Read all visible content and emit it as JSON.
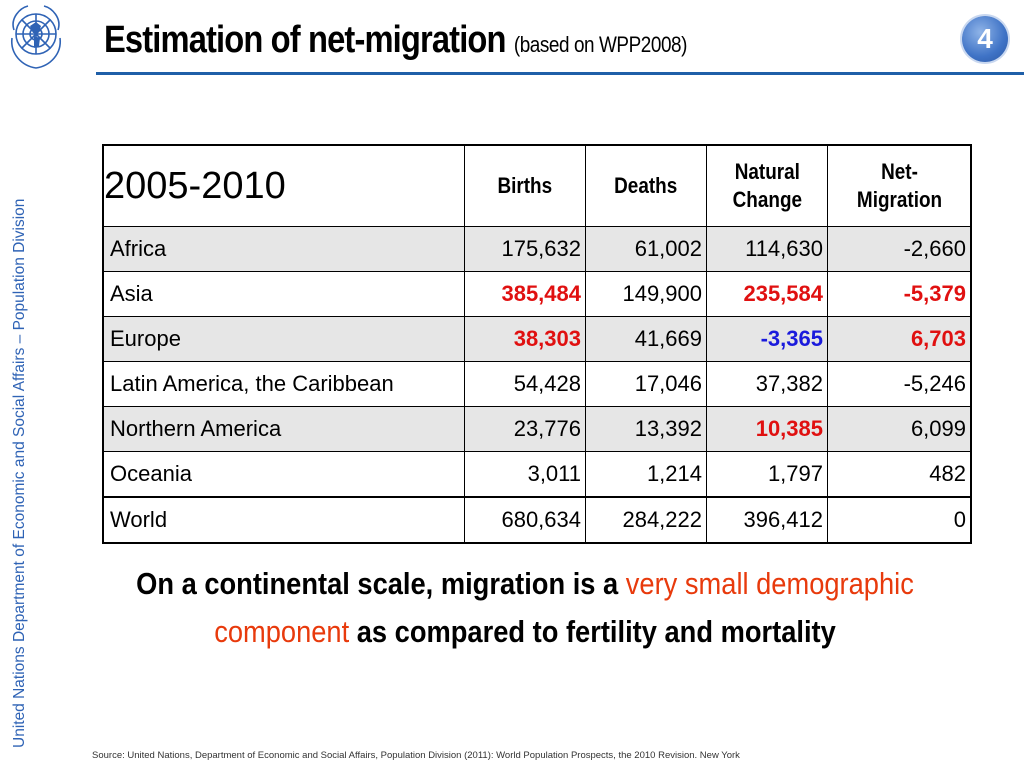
{
  "header": {
    "title": "Estimation of net-migration",
    "subtitle": "(based on WPP2008)",
    "slide_number": "4",
    "logo_icon": "un-emblem-icon"
  },
  "sidebar": {
    "text": "United Nations Department of Economic and Social Affairs – Population Division"
  },
  "table": {
    "period": "2005-2010",
    "columns": [
      "Births",
      "Deaths",
      "Natural Change",
      "Net-Migration"
    ],
    "column_lines": [
      [
        "Births"
      ],
      [
        "Deaths"
      ],
      [
        "Natural",
        "Change"
      ],
      [
        "Net-",
        "Migration"
      ]
    ],
    "rows": [
      {
        "region": "Africa",
        "births": "175,632",
        "deaths": "61,002",
        "natural_change": "114,630",
        "net_migration": "-2,660"
      },
      {
        "region": "Asia",
        "births": "385,484",
        "deaths": "149,900",
        "natural_change": "235,584",
        "net_migration": "-5,379"
      },
      {
        "region": "Europe",
        "births": "38,303",
        "deaths": "41,669",
        "natural_change": "-3,365",
        "net_migration": "6,703"
      },
      {
        "region": "Latin America, the Caribbean",
        "births": "54,428",
        "deaths": "17,046",
        "natural_change": "37,382",
        "net_migration": "-5,246"
      },
      {
        "region": "Northern America",
        "births": "23,776",
        "deaths": "13,392",
        "natural_change": "10,385",
        "net_migration": "6,099"
      },
      {
        "region": "Oceania",
        "births": "3,011",
        "deaths": "1,214",
        "natural_change": "1,797",
        "net_migration": "482"
      },
      {
        "region": "World",
        "births": "680,634",
        "deaths": "284,222",
        "natural_change": "396,412",
        "net_migration": "0"
      }
    ],
    "highlight_color_red": "#e01010",
    "highlight_color_blue": "#1a1adc"
  },
  "headline": {
    "part1": "On a continental scale, migration is a ",
    "highlight1": "very small demographic component",
    "part2": " as compared to fertility and mortality",
    "highlight_color": "#e83a0c"
  },
  "footer": {
    "source": "Source: United Nations, Department of Economic and Social Affairs, Population Division (2011): World Population Prospects, the 2010 Revision. New York"
  }
}
